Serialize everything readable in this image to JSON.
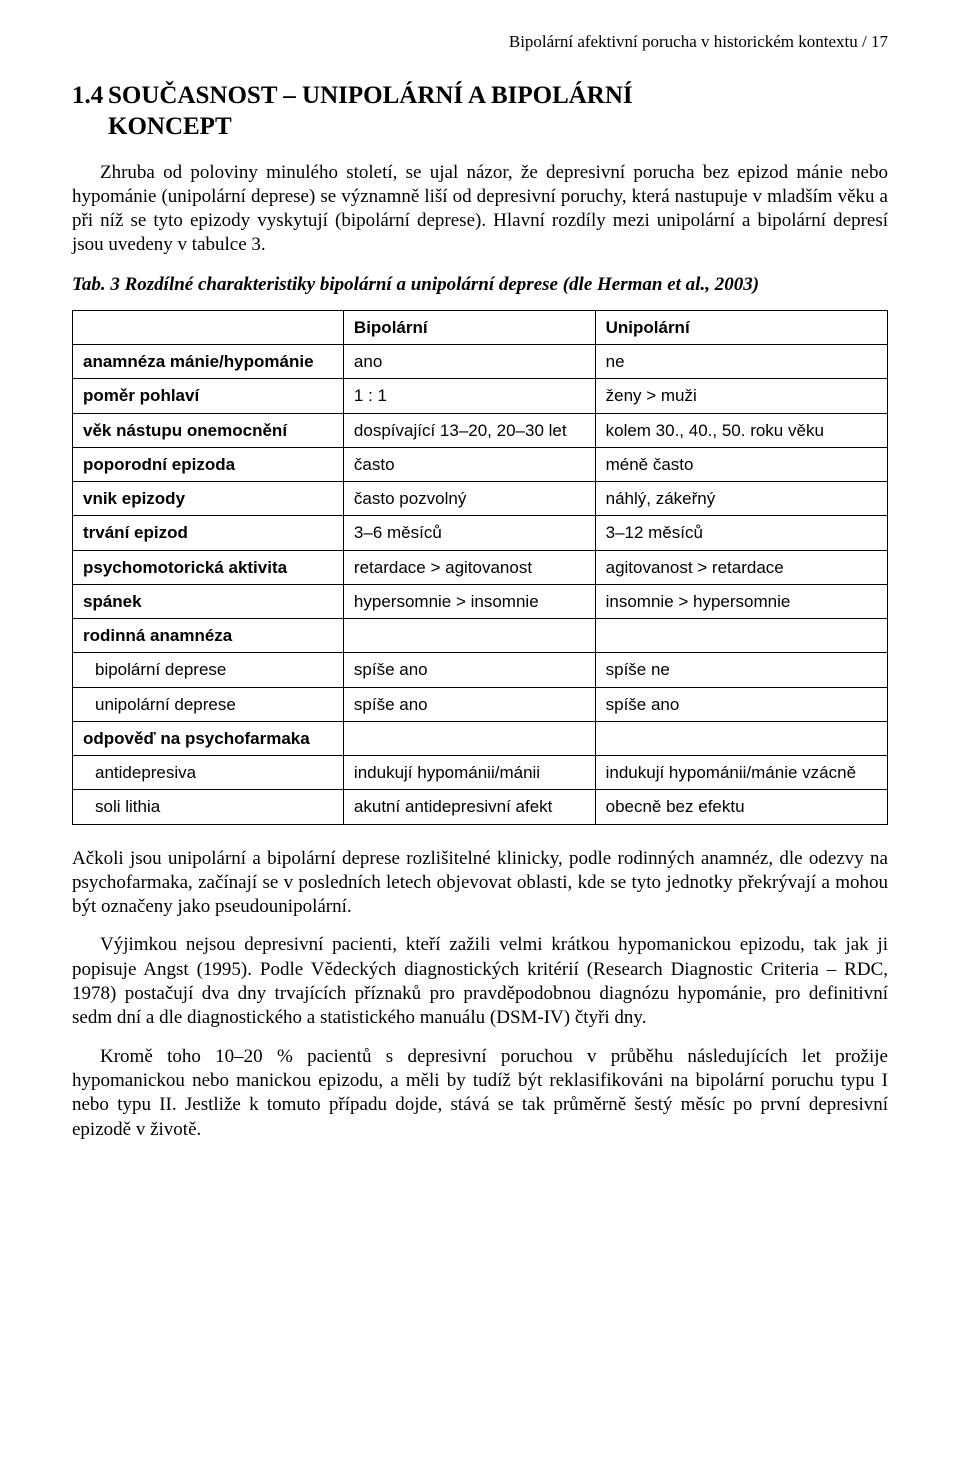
{
  "page": {
    "running_head": "Bipolární afektivní porucha v historickém kontextu   /   17"
  },
  "section": {
    "number": "1.4",
    "title_line1": "SOUČASNOST – UNIPOLÁRNÍ A BIPOLÁRNÍ",
    "title_line2": "KONCEPT"
  },
  "para1": "Zhruba od poloviny minulého století, se ujal názor, že depresivní porucha bez epizod mánie nebo hypománie (unipolární deprese) se významně liší od depresivní poruchy, která nastupuje v mladším věku a při níž se tyto epizody vyskytují (bipolární deprese). Hlavní rozdíly mezi unipolární a bipolární depresí jsou uvedeny v tabulce 3.",
  "table": {
    "caption": "Tab. 3 Rozdílné charakteristiky bipolární a unipolární deprese (dle Herman et al., 2003)",
    "columns": [
      "",
      "Bipolární",
      "Unipolární"
    ],
    "rows": [
      {
        "label": "anamnéza mánie/hypománie",
        "sub": false,
        "bip": "ano",
        "uni": "ne"
      },
      {
        "label": "poměr pohlaví",
        "sub": false,
        "bip": "1 : 1",
        "uni": "ženy > muži"
      },
      {
        "label": "věk nástupu onemocnění",
        "sub": false,
        "bip": "dospívající 13–20, 20–30 let",
        "uni": "kolem 30., 40., 50. roku věku"
      },
      {
        "label": "poporodní epizoda",
        "sub": false,
        "bip": "často",
        "uni": "méně často"
      },
      {
        "label": "vnik epizody",
        "sub": false,
        "bip": "často pozvolný",
        "uni": "náhlý, zákeřný"
      },
      {
        "label": "trvání epizod",
        "sub": false,
        "bip": "3–6 měsíců",
        "uni": "3–12 měsíců"
      },
      {
        "label": "psychomotorická aktivita",
        "sub": false,
        "bip": "retardace > agitovanost",
        "uni": "agitovanost > retardace"
      },
      {
        "label": "spánek",
        "sub": false,
        "bip": "hypersomnie > insomnie",
        "uni": "insomnie > hypersomnie"
      },
      {
        "label": "rodinná anamnéza",
        "sub": false,
        "bip": "",
        "uni": ""
      },
      {
        "label": "bipolární deprese",
        "sub": true,
        "bip": "spíše ano",
        "uni": "spíše ne"
      },
      {
        "label": "unipolární deprese",
        "sub": true,
        "bip": "spíše ano",
        "uni": "spíše ano"
      },
      {
        "label": "odpověď na psychofarmaka",
        "sub": false,
        "bip": "",
        "uni": ""
      },
      {
        "label": "antidepresiva",
        "sub": true,
        "bip": "indukují hypománii/mánii",
        "uni": "indukují hypománii/mánie vzácně"
      },
      {
        "label": "soli lithia",
        "sub": true,
        "bip": "akutní antidepresivní afekt",
        "uni": "obecně bez efektu"
      }
    ]
  },
  "para2": "Ačkoli jsou unipolární a bipolární deprese rozlišitelné klinicky, podle rodinných anamnéz, dle odezvy na psychofarmaka, začínají se v posledních letech objevovat oblasti, kde se tyto jednotky překrývají a mohou být označeny jako pseudounipolární.",
  "para3": "Výjimkou nejsou depresivní pacienti, kteří zažili velmi krátkou hypomanickou epizodu, tak jak ji popisuje Angst (1995). Podle Vědeckých diagnostických kritérií (Research Diagnostic Criteria – RDC, 1978) postačují dva dny trvajících příznaků pro pravděpodobnou diagnózu hypománie, pro definitivní sedm dní a dle diagnostického a statistického manuálu (DSM-IV) čtyři dny.",
  "para4": "Kromě toho 10–20 % pacientů s depresivní poruchou v průběhu následujících let prožije hypomanickou nebo manickou epizodu, a měli by tudíž být reklasifikováni na bipolární poruchu typu I nebo typu II. Jestliže k tomuto případu dojde, stává se tak průměrně šestý měsíc po první depresivní epizodě v životě."
}
